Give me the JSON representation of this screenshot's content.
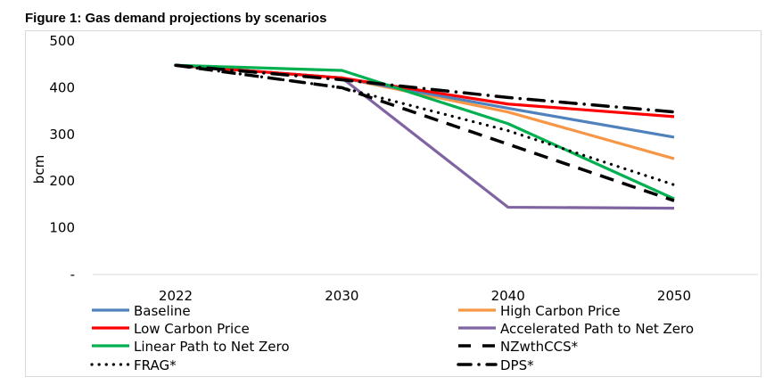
{
  "title": "Figure 1: Gas demand projections by scenarios",
  "chart_data": {
    "type": "line",
    "title": "Figure 1: Gas demand projections by scenarios",
    "xlabel": "",
    "ylabel": "bcm",
    "x": [
      "2022",
      "2030",
      "2040",
      "2050"
    ],
    "ylim": [
      0,
      500
    ],
    "yticks": [
      0,
      100,
      200,
      300,
      400,
      500
    ],
    "ytick_labels": [
      "-",
      "100",
      "200",
      "300",
      "400",
      "500"
    ],
    "grid": false,
    "legend_position": "bottom",
    "series": [
      {
        "name": "Baseline",
        "color": "#4f81bd",
        "style": "solid",
        "values": [
          448,
          421,
          356,
          294
        ]
      },
      {
        "name": "High Carbon Price",
        "color": "#f79646",
        "style": "solid",
        "values": [
          448,
          421,
          348,
          248
        ]
      },
      {
        "name": "Low Carbon Price",
        "color": "#ff0000",
        "style": "solid",
        "values": [
          448,
          421,
          365,
          338
        ]
      },
      {
        "name": "Accelerated Path to Net Zero",
        "color": "#8064a2",
        "style": "solid",
        "values": [
          448,
          421,
          144,
          142
        ]
      },
      {
        "name": "Linear Path to Net Zero",
        "color": "#00b050",
        "style": "solid",
        "values": [
          448,
          437,
          323,
          162
        ]
      },
      {
        "name": "NZwthCCS*",
        "color": "#000000",
        "style": "dash",
        "values": [
          448,
          400,
          279,
          158
        ]
      },
      {
        "name": "FRAG*",
        "color": "#000000",
        "style": "dot",
        "values": [
          448,
          400,
          308,
          192
        ]
      },
      {
        "name": "DPS*",
        "color": "#000000",
        "style": "dashdot",
        "values": [
          448,
          417,
          379,
          348
        ]
      }
    ]
  }
}
